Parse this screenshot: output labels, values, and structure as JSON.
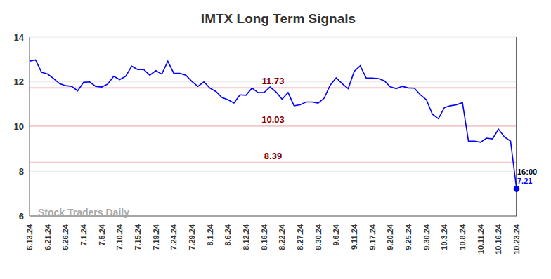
{
  "chart_data": {
    "type": "line",
    "title": "IMTX Long Term Signals",
    "watermark": "Stock Traders Daily",
    "annotations": [
      "16:00"
    ],
    "categories": [
      "6.13.24",
      null,
      null,
      "6.21.24",
      null,
      null,
      "6.26.24",
      null,
      null,
      "7.1.24",
      null,
      null,
      "7.5.24",
      null,
      null,
      "7.10.24",
      null,
      null,
      "7.15.24",
      null,
      null,
      "7.19.24",
      null,
      null,
      "7.24.24",
      null,
      null,
      "7.29.24",
      null,
      null,
      "8.1.24",
      null,
      null,
      "8.6.24",
      null,
      null,
      "8.12.24",
      null,
      null,
      "8.16.24",
      null,
      null,
      "8.22.24",
      null,
      null,
      "8.27.24",
      null,
      null,
      "8.30.24",
      null,
      null,
      "9.6.24",
      null,
      null,
      "9.11.24",
      null,
      null,
      "9.17.24",
      null,
      null,
      "9.20.24",
      null,
      null,
      "9.25.24",
      null,
      null,
      "9.30.24",
      null,
      null,
      "10.3.24",
      null,
      null,
      "10.8.24",
      null,
      null,
      "10.11.24",
      null,
      null,
      "10.16.24",
      null,
      null,
      "10.23.24"
    ],
    "values": [
      12.93,
      12.98,
      12.43,
      12.35,
      12.15,
      11.92,
      11.83,
      11.8,
      11.6,
      11.98,
      12.0,
      11.8,
      11.77,
      11.9,
      12.25,
      12.1,
      12.25,
      12.7,
      12.55,
      12.55,
      12.3,
      12.5,
      12.35,
      12.92,
      12.38,
      12.38,
      12.3,
      12.02,
      11.8,
      12.0,
      11.72,
      11.57,
      11.3,
      11.2,
      11.05,
      11.42,
      11.4,
      11.72,
      11.52,
      11.52,
      11.77,
      11.55,
      11.22,
      11.52,
      10.93,
      10.97,
      11.1,
      11.1,
      11.05,
      11.27,
      11.85,
      12.18,
      11.92,
      11.7,
      12.47,
      12.72,
      12.17,
      12.17,
      12.15,
      12.05,
      11.78,
      11.7,
      11.8,
      11.73,
      11.72,
      11.42,
      11.2,
      10.55,
      10.35,
      10.85,
      10.93,
      10.97,
      11.07,
      9.35,
      9.35,
      9.3,
      9.48,
      9.45,
      9.88,
      9.53,
      9.35,
      7.21
    ],
    "color": "#0000ff",
    "hlines": [
      11.73,
      10.03,
      8.39
    ],
    "ylim": [
      6,
      14
    ],
    "yticks": [
      6,
      8,
      10,
      12,
      14
    ],
    "grid": true
  }
}
